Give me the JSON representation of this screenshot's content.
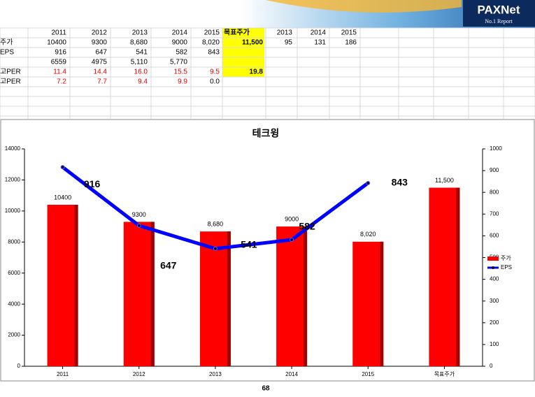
{
  "header": {
    "logo": "PAXNet",
    "tagline": "No.1 Report"
  },
  "table": {
    "header": [
      null,
      "2011",
      "2012",
      "2013",
      "2014",
      "2015",
      "목표주가",
      "2013",
      "2014",
      "2015"
    ],
    "rows": [
      [
        "주가",
        "10400",
        "9300",
        "8,680",
        "9000",
        "8,020",
        "11,500",
        "95",
        "131",
        "186"
      ],
      [
        "EPS",
        "916",
        "647",
        "541",
        "582",
        "843",
        null,
        null,
        null,
        null
      ],
      [
        null,
        "6559",
        "4975",
        "5,110",
        "5,770",
        null,
        null,
        null,
        null,
        null
      ],
      [
        "고PER",
        "11.4",
        "14.4",
        "16.0",
        "15.5",
        "9.5",
        "19.8",
        null,
        null,
        null
      ],
      [
        "고PER",
        "7.2",
        "7.7",
        "9.4",
        "9.9",
        "0.0",
        null,
        null,
        null,
        null
      ]
    ]
  },
  "chart_data": {
    "type": "bar",
    "title": "테크윙",
    "categories": [
      "2011",
      "2012",
      "2013",
      "2014",
      "2015",
      "목표주가"
    ],
    "series": [
      {
        "name": "주가",
        "type": "bar",
        "color": "#ff0000",
        "values": [
          10400,
          9300,
          8680,
          9000,
          8020,
          11500
        ],
        "value_labels": [
          "10400",
          "9300",
          "8,680",
          "9000",
          "8,020",
          "11,500"
        ]
      },
      {
        "name": "EPS",
        "type": "line",
        "axis": "y2",
        "color": "#0000ff",
        "values": [
          916,
          647,
          541,
          582,
          843,
          null
        ]
      }
    ],
    "ylim": [
      0,
      14000
    ],
    "yticks": [
      0,
      2000,
      4000,
      6000,
      8000,
      10000,
      12000,
      14000
    ],
    "y2lim": [
      0,
      1000
    ],
    "y2ticks": [
      0,
      100,
      200,
      300,
      400,
      500,
      600,
      700,
      800,
      900,
      1000
    ],
    "legend": "right"
  },
  "footer": {
    "page": "68"
  }
}
